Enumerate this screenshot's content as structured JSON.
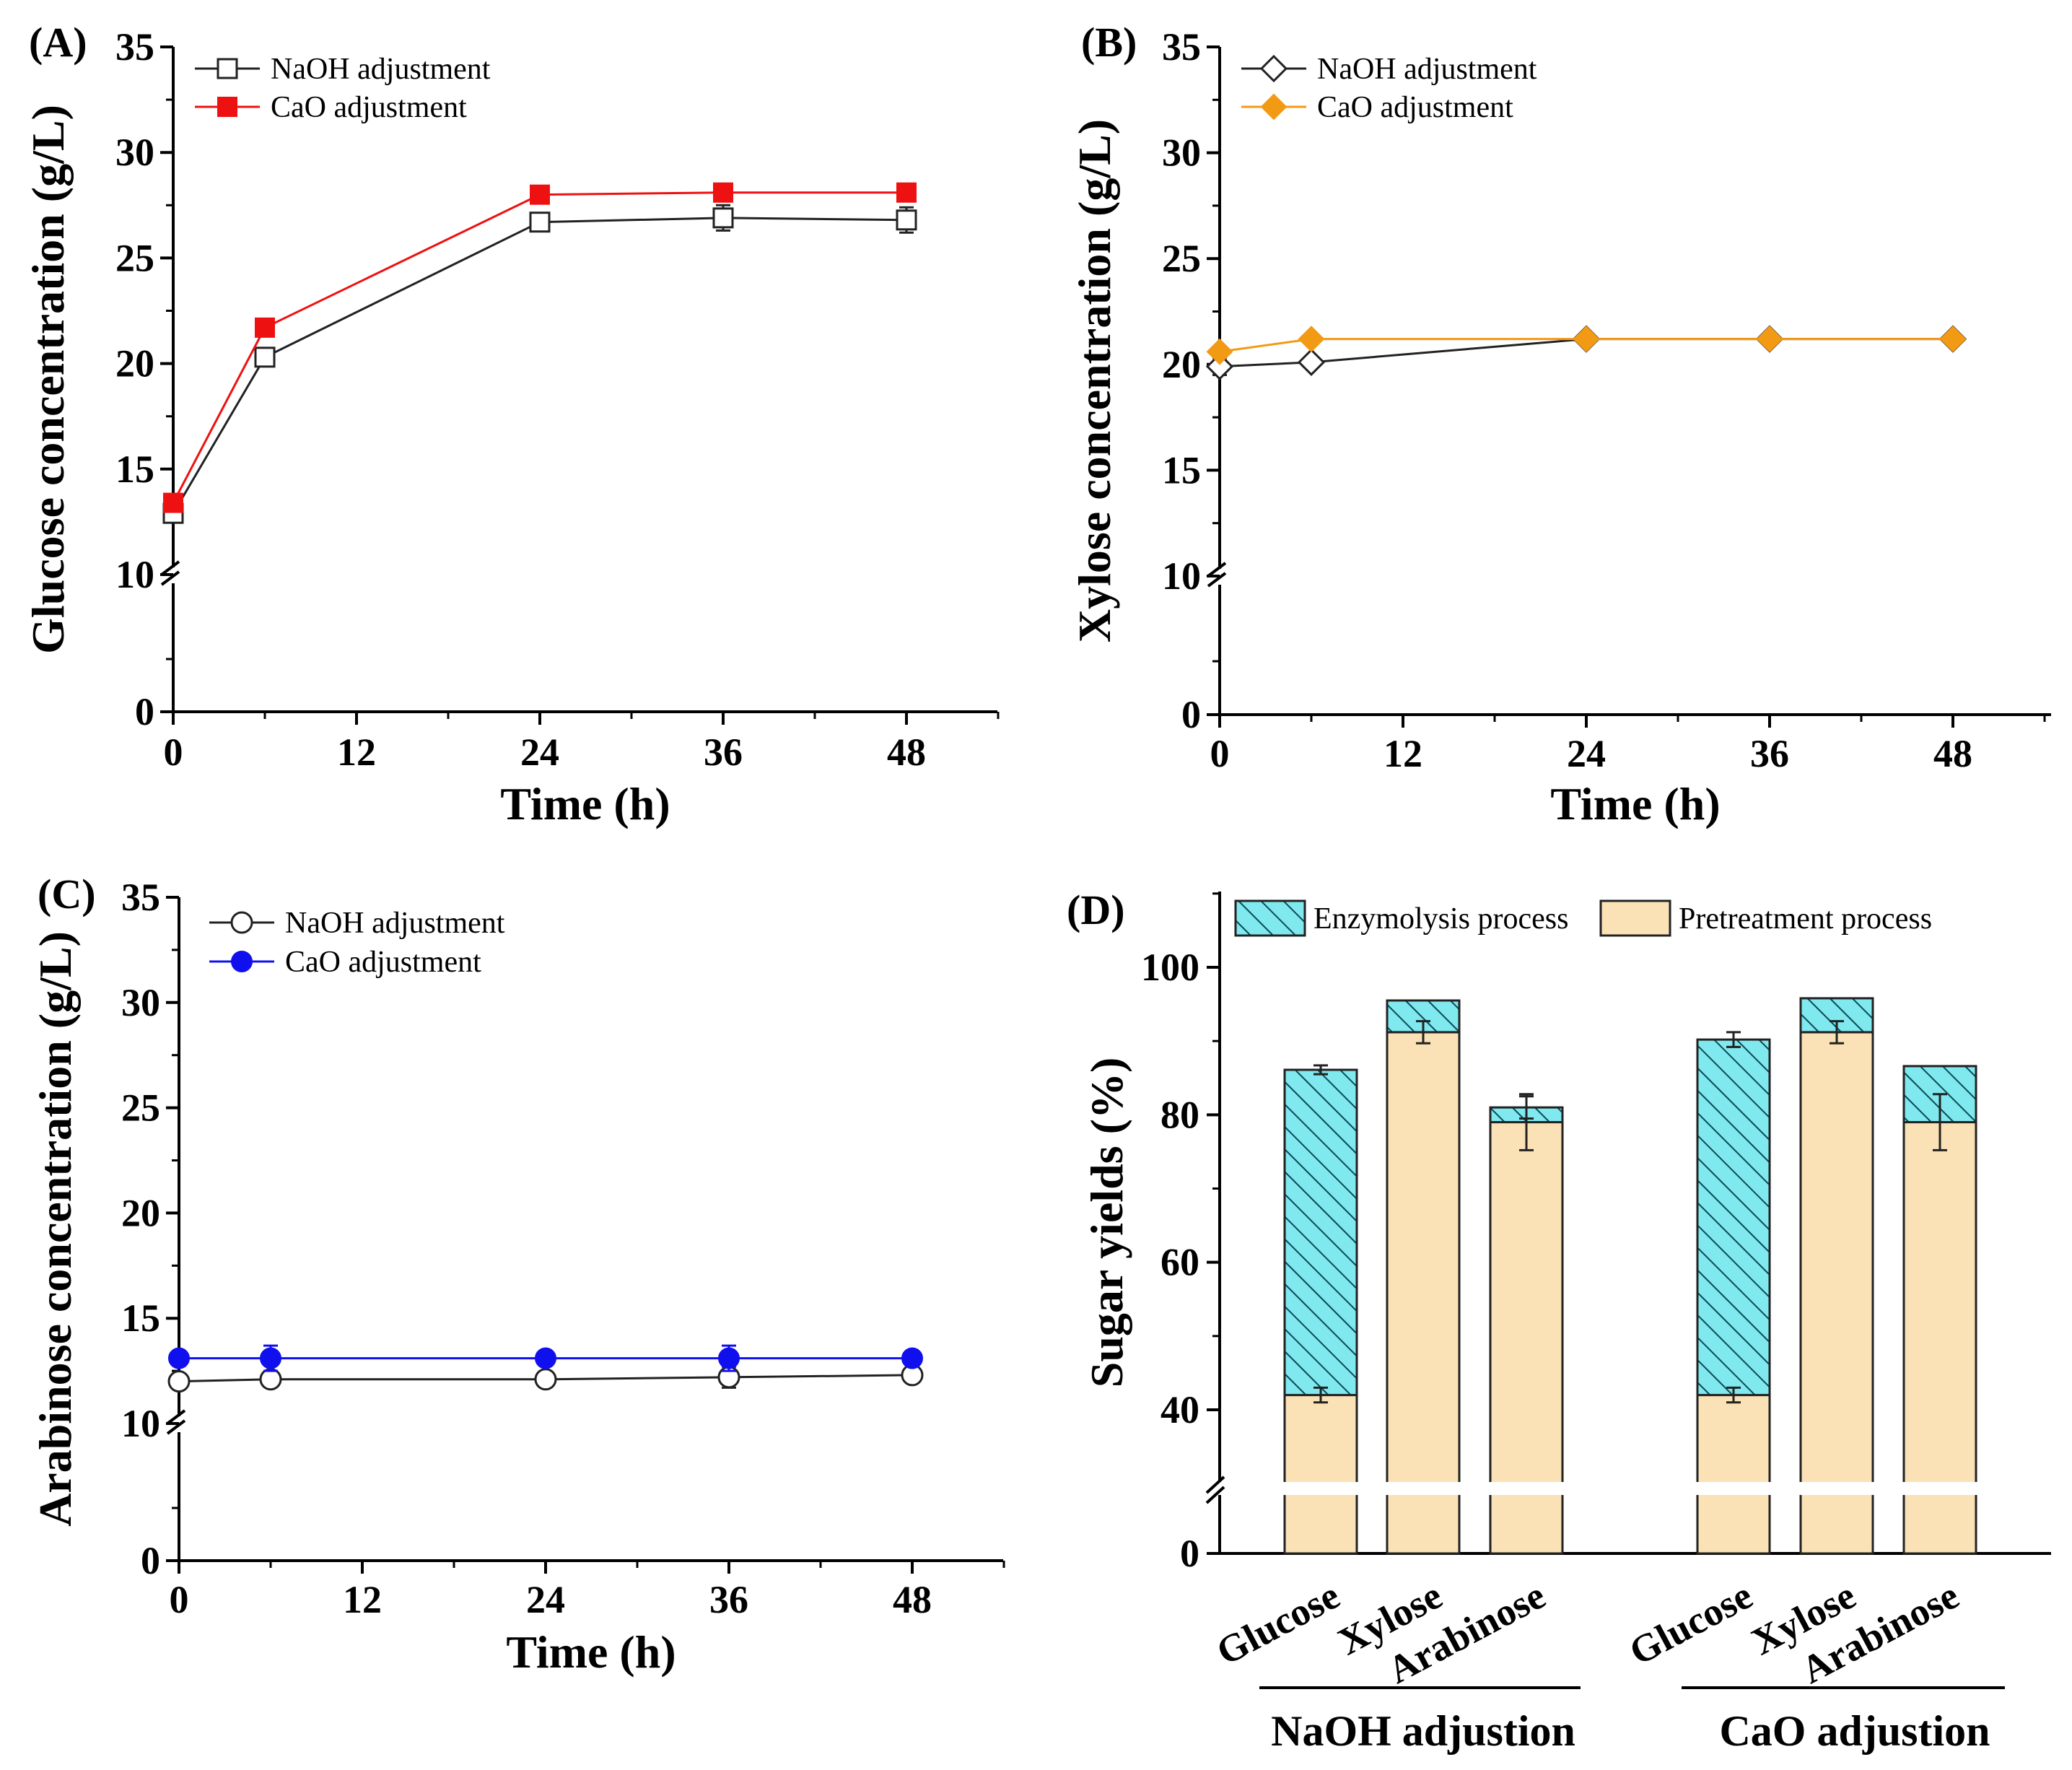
{
  "colors": {
    "naoh": "#222222",
    "cao_glucose": "#ee1111",
    "cao_xylose": "#f39a14",
    "cao_arabinose": "#1010ee",
    "enzymolysis_fill": "#7fe9ef",
    "pretreatment_fill": "#fbe2b6"
  },
  "chart_data": [
    {
      "panel": "(A)",
      "type": "line",
      "xlabel": "Time (h)",
      "ylabel": "Glucose concentration (g/L)",
      "xlim": [
        0,
        54
      ],
      "xticks": [
        "0",
        "12",
        "24",
        "36",
        "48"
      ],
      "ylim": [
        0,
        35
      ],
      "axis_break": [
        0,
        10
      ],
      "yticks": [
        "0",
        "10",
        "15",
        "20",
        "25",
        "30",
        "35"
      ],
      "x": [
        0,
        6,
        24,
        36,
        48
      ],
      "series": [
        {
          "name": "NaOH adjustment",
          "marker": "open-square",
          "values": [
            12.9,
            20.3,
            26.7,
            26.9,
            26.8
          ],
          "errors": [
            0.3,
            0.4,
            0.4,
            0.6,
            0.6
          ]
        },
        {
          "name": "CaO adjustment",
          "marker": "filled-square",
          "values": [
            13.4,
            21.7,
            28.0,
            28.1,
            28.1
          ],
          "errors": [
            0,
            0,
            0,
            0,
            0
          ]
        }
      ]
    },
    {
      "panel": "(B)",
      "type": "line",
      "xlabel": "Time (h)",
      "ylabel": "Xylose concentration (g/L)",
      "xlim": [
        0,
        54
      ],
      "xticks": [
        "0",
        "12",
        "24",
        "36",
        "48"
      ],
      "ylim": [
        0,
        35
      ],
      "axis_break": [
        0,
        10
      ],
      "yticks": [
        "0",
        "10",
        "15",
        "20",
        "25",
        "30",
        "35"
      ],
      "x": [
        0,
        6,
        24,
        36,
        48
      ],
      "series": [
        {
          "name": "NaOH adjustment",
          "marker": "open-diamond",
          "values": [
            19.9,
            20.1,
            21.2,
            21.2,
            21.2
          ],
          "errors": [
            0.4,
            0.2,
            0.2,
            0.2,
            0.2
          ]
        },
        {
          "name": "CaO adjustment",
          "marker": "filled-diamond",
          "values": [
            20.6,
            21.2,
            21.2,
            21.2,
            21.2
          ],
          "errors": [
            0,
            0,
            0,
            0,
            0
          ]
        }
      ]
    },
    {
      "panel": "(C)",
      "type": "line",
      "xlabel": "Time (h)",
      "ylabel": "Arabinose concentration (g/L)",
      "xlim": [
        0,
        54
      ],
      "xticks": [
        "0",
        "12",
        "24",
        "36",
        "48"
      ],
      "ylim": [
        0,
        35
      ],
      "axis_break": [
        0,
        10
      ],
      "yticks": [
        "0",
        "10",
        "15",
        "20",
        "25",
        "30",
        "35"
      ],
      "x": [
        0,
        6,
        24,
        36,
        48
      ],
      "series": [
        {
          "name": "NaOH adjustment",
          "marker": "open-circle",
          "values": [
            12.0,
            12.1,
            12.1,
            12.2,
            12.3
          ],
          "errors": [
            0.2,
            0.3,
            0.2,
            0.5,
            0.2
          ]
        },
        {
          "name": "CaO adjustment",
          "marker": "filled-circle",
          "values": [
            13.1,
            13.1,
            13.1,
            13.1,
            13.1
          ],
          "errors": [
            0.3,
            0.6,
            0.2,
            0.6,
            0.2
          ]
        }
      ]
    },
    {
      "panel": "(D)",
      "type": "bar",
      "stacked": true,
      "ylabel": "Sugar yields (%)",
      "ylim": [
        0,
        110
      ],
      "axis_break": [
        0,
        30
      ],
      "yticks": [
        "0",
        "40",
        "60",
        "80",
        "100"
      ],
      "groups": [
        "NaOH adjustion",
        "CaO adjustion"
      ],
      "categories": [
        "Glucose",
        "Xylose",
        "Arabinose",
        "Glucose",
        "Xylose",
        "Arabinose"
      ],
      "series": [
        {
          "name": "Pretreatment process",
          "fill": "plain",
          "values": [
            42,
            91.2,
            79,
            42,
            91.2,
            79
          ],
          "errors": [
            1.0,
            1.5,
            3.8,
            1.0,
            1.5,
            3.8
          ]
        },
        {
          "name": "Enzymolysis process",
          "fill": "hatched",
          "values": [
            44.1,
            4.3,
            2.0,
            48.2,
            4.6,
            7.6
          ],
          "errors": [
            0.6,
            0,
            1.5,
            1.0,
            0,
            0
          ]
        }
      ],
      "legend": [
        "Enzymolysis process",
        "Pretreatment process"
      ]
    }
  ]
}
